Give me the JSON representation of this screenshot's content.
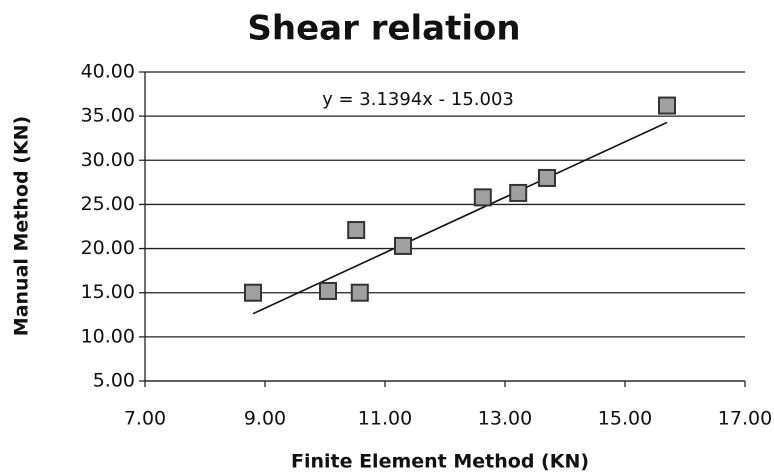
{
  "chart_data": {
    "type": "scatter",
    "title": "Shear relation",
    "x_label": "Finite Element Method (KN)",
    "y_label": "Manual Method (KN)",
    "x": [
      8.8,
      10.05,
      10.52,
      10.58,
      11.3,
      12.63,
      13.22,
      13.7,
      15.7
    ],
    "y": [
      15.0,
      15.2,
      22.1,
      15.0,
      20.3,
      25.8,
      26.3,
      28.0,
      36.2
    ],
    "color": "#a0a0a0",
    "xlim": [
      7,
      17
    ],
    "xticks": [
      {
        "value": 7,
        "label": "7.00"
      },
      {
        "value": 9,
        "label": "9.00"
      },
      {
        "value": 11,
        "label": "11.00"
      },
      {
        "value": 13,
        "label": "13.00"
      },
      {
        "value": 15,
        "label": "15.00"
      },
      {
        "value": 17,
        "label": "17.00"
      }
    ],
    "ylim": [
      5,
      40
    ],
    "yticks": [
      {
        "value": 5,
        "label": "5.00"
      },
      {
        "value": 10,
        "label": "10.00"
      },
      {
        "value": 15,
        "label": "15.00"
      },
      {
        "value": 20,
        "label": "20.00"
      },
      {
        "value": 25,
        "label": "25.00"
      },
      {
        "value": 30,
        "label": "30.00"
      },
      {
        "value": 35,
        "label": "35.00"
      },
      {
        "value": 40,
        "label": "40.00"
      }
    ],
    "grid": true,
    "trendline": {
      "slope": 3.1394,
      "intercept": -15.003,
      "label": "y = 3.1394x - 15.003"
    }
  }
}
